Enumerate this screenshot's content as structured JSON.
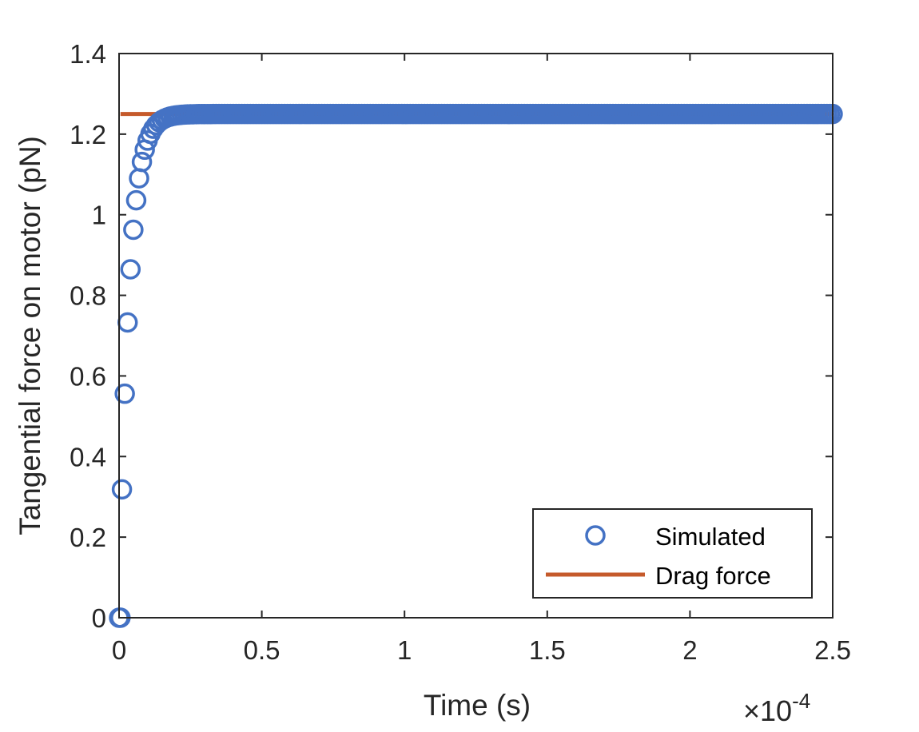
{
  "chart_data": {
    "type": "scatter",
    "title": "",
    "xlabel": "Time (s)",
    "ylabel": "Tangential force on motor (pN)",
    "x_exponent_label": {
      "times": "×",
      "base": "10",
      "exponent": "-4"
    },
    "xlim": [
      0,
      0.00025
    ],
    "ylim": [
      0,
      1.4
    ],
    "xticks": [
      0,
      5e-05,
      0.0001,
      0.00015,
      0.0002,
      0.00025
    ],
    "xtick_labels": [
      "0",
      "0.5",
      "1",
      "1.5",
      "2",
      "2.5"
    ],
    "yticks": [
      0,
      0.2,
      0.4,
      0.6,
      0.8,
      1.0,
      1.2,
      1.4
    ],
    "ytick_labels": [
      "0",
      "0.2",
      "0.4",
      "0.6",
      "0.8",
      "1",
      "1.2",
      "1.4"
    ],
    "grid": false,
    "legend_position": "bottom-right",
    "series": [
      {
        "name": "Simulated",
        "kind": "markers",
        "marker": "circle-open",
        "color": "#4472C4",
        "plateau": 1.25,
        "tau": 3.4e-06,
        "t_start": 1e-06,
        "dt": 1e-06,
        "t_end": 0.00025,
        "points_x": [
          0,
          5e-07
        ],
        "points_y": [
          0,
          0
        ]
      },
      {
        "name": "Drag force",
        "kind": "line",
        "color": "#C55A2B",
        "x": [
          5e-07,
          0.00025
        ],
        "y": [
          1.25,
          1.25
        ]
      }
    ]
  }
}
